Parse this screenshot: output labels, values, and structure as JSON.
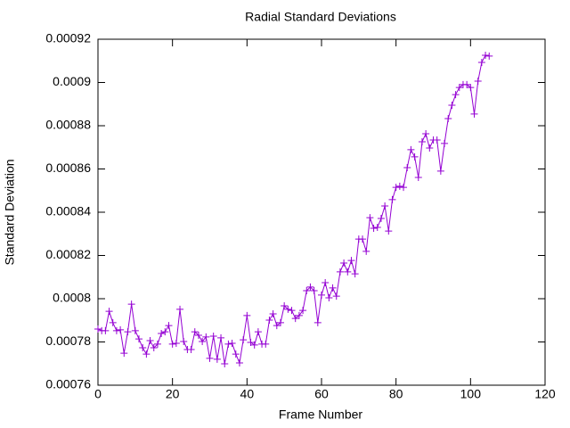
{
  "chart_data": {
    "type": "line",
    "title": "Radial Standard Deviations",
    "x_label": "Frame Number",
    "y_label": "Standard Deviation",
    "xlim": [
      0,
      120
    ],
    "xticks": [
      0,
      20,
      40,
      60,
      80,
      100,
      120
    ],
    "ylim": [
      0.00076,
      0.00092
    ],
    "yticks": [
      0.00076,
      0.00078,
      0.0008,
      0.00082,
      0.00084,
      0.00086,
      0.00088,
      0.0009,
      0.00092
    ],
    "marker": "plus",
    "series": [
      {
        "color": "#9400d3",
        "x": [
          0,
          1,
          2,
          3,
          4,
          5,
          6,
          7,
          8,
          9,
          10,
          11,
          12,
          13,
          14,
          15,
          16,
          17,
          18,
          19,
          20,
          21,
          22,
          23,
          24,
          25,
          26,
          27,
          28,
          29,
          30,
          31,
          32,
          33,
          34,
          35,
          36,
          37,
          38,
          39,
          40,
          41,
          42,
          43,
          44,
          45,
          46,
          47,
          48,
          49,
          50,
          51,
          52,
          53,
          54,
          55,
          56,
          57,
          58,
          59,
          60,
          61,
          62,
          63,
          64,
          65,
          66,
          67,
          68,
          69,
          70,
          71,
          72,
          73,
          74,
          75,
          76,
          77,
          78,
          79,
          80,
          81,
          82,
          83,
          84,
          85,
          86,
          87,
          88,
          89,
          90,
          91,
          92,
          93,
          94,
          95,
          96,
          97,
          98,
          99,
          100,
          101,
          102,
          103,
          104,
          105
        ],
        "values": [
          0.000786,
          0.0007852,
          0.0007852,
          0.0007942,
          0.0007889,
          0.0007852,
          0.0007856,
          0.0007748,
          0.0007847,
          0.0007975,
          0.0007852,
          0.0007814,
          0.0007773,
          0.0007744,
          0.0007806,
          0.0007773,
          0.000779,
          0.0007839,
          0.0007847,
          0.0007876,
          0.000779,
          0.0007794,
          0.0007951,
          0.0007802,
          0.0007765,
          0.0007765,
          0.0007847,
          0.0007831,
          0.0007802,
          0.0007823,
          0.0007724,
          0.0007827,
          0.000772,
          0.0007819,
          0.0007699,
          0.000779,
          0.0007794,
          0.0007744,
          0.0007703,
          0.000781,
          0.0007922,
          0.0007798,
          0.0007786,
          0.0007847,
          0.000779,
          0.000779,
          0.0007901,
          0.000793,
          0.0007876,
          0.0007889,
          0.0007967,
          0.0007951,
          0.0007946,
          0.0007909,
          0.0007922,
          0.0007946,
          0.0008037,
          0.0008054,
          0.0008037,
          0.0007889,
          0.0008017,
          0.0008074,
          0.0008004,
          0.000805,
          0.0008012,
          0.0008124,
          0.0008165,
          0.0008124,
          0.0008177,
          0.0008115,
          0.0008276,
          0.0008276,
          0.0008219,
          0.0008375,
          0.0008326,
          0.000833,
          0.0008371,
          0.0008429,
          0.0008313,
          0.0008458,
          0.0008515,
          0.000852,
          0.0008515,
          0.0008606,
          0.0008689,
          0.0008656,
          0.0008561,
          0.0008726,
          0.0008763,
          0.0008697,
          0.0008734,
          0.0008734,
          0.000859,
          0.0008718,
          0.0008833,
          0.0008895,
          0.0008944,
          0.0008977,
          0.000899,
          0.000899,
          0.0008977,
          0.0008854,
          0.0009006,
          0.0009093,
          0.0009126,
          0.0009122
        ]
      }
    ]
  }
}
